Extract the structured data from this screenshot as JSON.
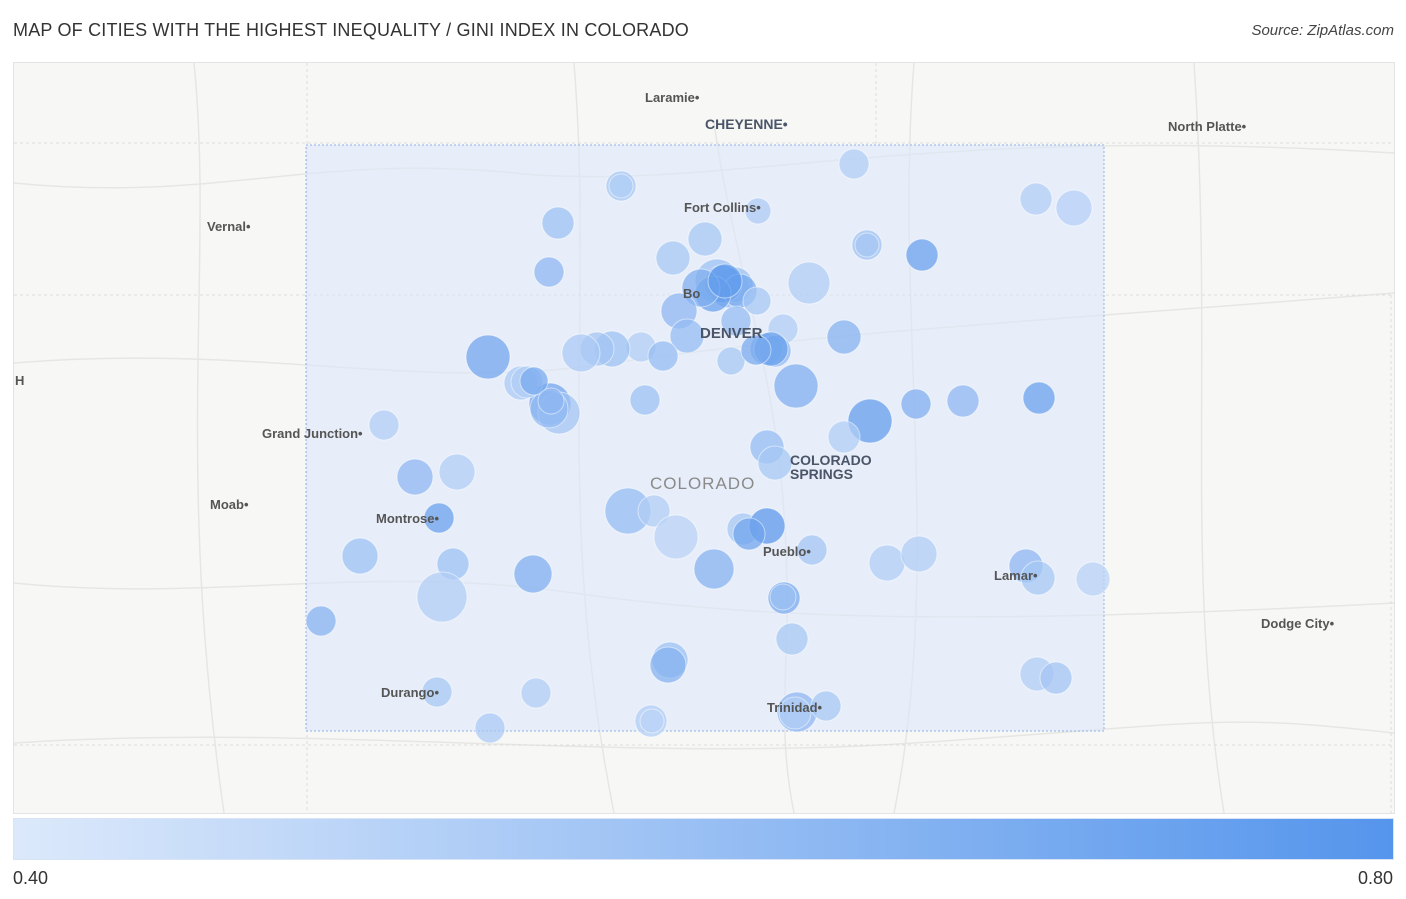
{
  "header": {
    "title": "MAP OF CITIES WITH THE HIGHEST INEQUALITY / GINI INDEX IN COLORADO",
    "source": "Source: ZipAtlas.com"
  },
  "map": {
    "state_label": "COLORADO",
    "edge_label": "H",
    "cities": [
      {
        "name": "Laramie",
        "style": "city"
      },
      {
        "name": "CHEYENNE",
        "style": "big"
      },
      {
        "name": "North Platte",
        "style": "city"
      },
      {
        "name": "Vernal",
        "style": "city"
      },
      {
        "name": "Fort Collins",
        "style": "city"
      },
      {
        "name": "Bo",
        "style": "city"
      },
      {
        "name": "DENVER",
        "style": "metro"
      },
      {
        "name": "Grand Junction",
        "style": "city"
      },
      {
        "name": "COLORADO",
        "style": "big"
      },
      {
        "name": "SPRINGS",
        "style": "big"
      },
      {
        "name": "Moab",
        "style": "city"
      },
      {
        "name": "Montrose",
        "style": "city"
      },
      {
        "name": "Pueblo",
        "style": "city"
      },
      {
        "name": "Lamar",
        "style": "city"
      },
      {
        "name": "Dodge City",
        "style": "city"
      },
      {
        "name": "Durango",
        "style": "city"
      },
      {
        "name": "Trinidad",
        "style": "city"
      }
    ],
    "bubble_values": [
      0.52,
      0.55,
      0.53,
      0.52,
      0.51,
      0.58,
      0.55,
      0.57,
      0.72,
      0.62,
      0.55,
      0.52,
      0.58,
      0.6,
      0.58,
      0.7,
      0.68,
      0.72,
      0.66,
      0.74,
      0.62,
      0.55,
      0.52,
      0.6,
      0.64,
      0.6,
      0.62,
      0.55,
      0.52,
      0.58,
      0.7,
      0.56,
      0.54,
      0.6,
      0.62,
      0.66,
      0.72,
      0.68,
      0.7,
      0.54,
      0.52,
      0.56,
      0.6,
      0.74,
      0.66,
      0.62,
      0.72,
      0.52,
      0.58,
      0.6,
      0.52,
      0.55,
      0.52,
      0.62,
      0.72,
      0.6,
      0.52,
      0.5,
      0.55,
      0.76,
      0.7,
      0.64,
      0.56,
      0.52,
      0.52,
      0.62,
      0.55,
      0.5,
      0.58,
      0.66,
      0.58,
      0.52,
      0.68,
      0.55,
      0.58,
      0.64,
      0.64,
      0.52,
      0.56,
      0.55,
      0.52,
      0.54,
      0.52,
      0.62,
      0.55,
      0.52,
      0.68,
      0.62,
      0.52,
      0.58,
      0.55,
      0.5
    ]
  },
  "legend": {
    "min_label": "0.40",
    "max_label": "0.80",
    "min_color": "#dce9fb",
    "max_color": "#4a8de8"
  }
}
